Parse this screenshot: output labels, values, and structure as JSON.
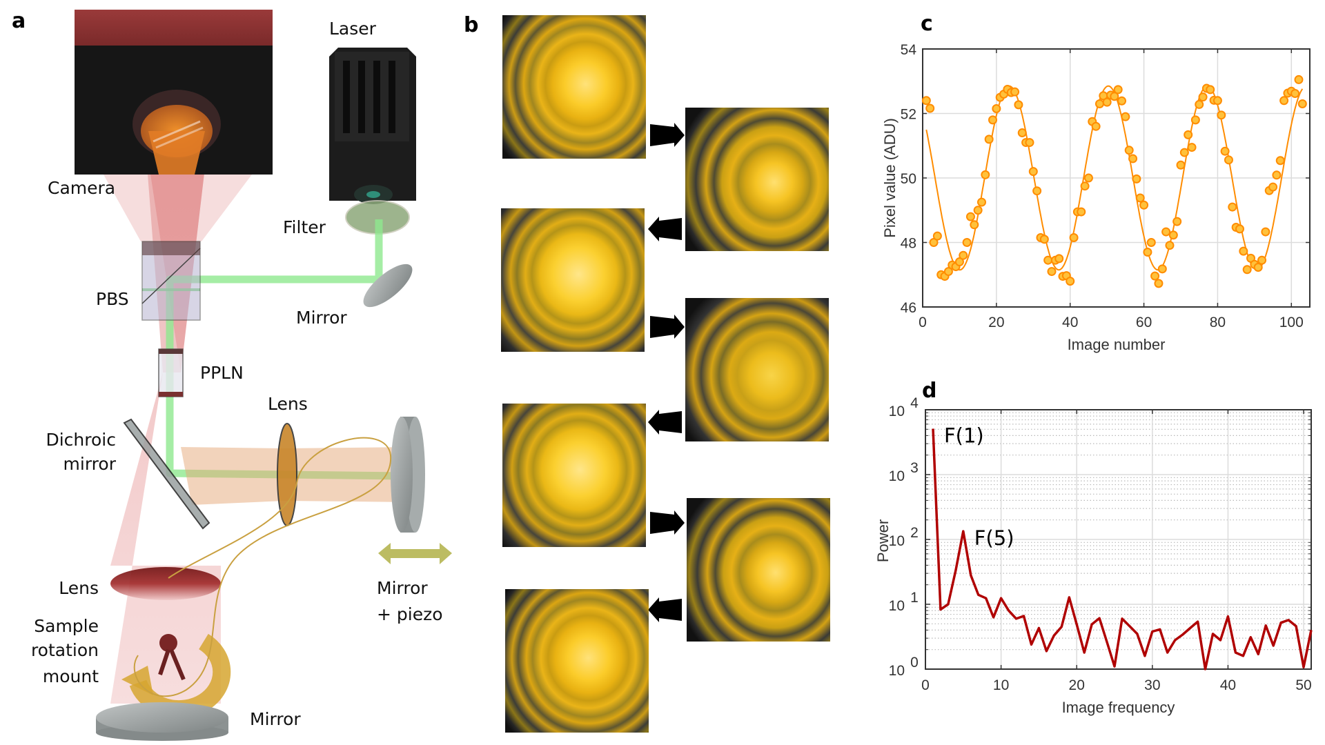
{
  "panel_labels": {
    "a": "a",
    "b": "b",
    "c": "c",
    "d": "d"
  },
  "setup": {
    "labels": {
      "laser": "Laser",
      "camera": "Camera",
      "filter": "Filter",
      "pbs": "PBS",
      "mirror_upper": "Mirror",
      "ppln": "PPLN",
      "lens_right": "Lens",
      "dichroic_line1": "Dichroic",
      "dichroic_line2": "mirror",
      "mirror_piezo_line1": "Mirror",
      "mirror_piezo_line2": "+ piezo",
      "lens_bottom": "Lens",
      "sample_line1": "Sample",
      "sample_line2": "rotation",
      "sample_line3": "mount",
      "mirror_bottom": "Mirror"
    },
    "colors": {
      "pump_beam": "#8fe88f",
      "signal_beam": "#e8a0a0",
      "camera_top": "#8e3535",
      "piezo_arrow": "#bcbc62"
    }
  },
  "panel_b": {
    "arrow_directions": [
      "right",
      "left",
      "right",
      "left",
      "right",
      "left"
    ]
  },
  "chart_data": [
    {
      "type": "scatter",
      "xlabel": "Image number",
      "ylabel": "Pixel value (ADU)",
      "xlim": [
        0,
        105
      ],
      "ylim": [
        46,
        54
      ],
      "xticks": [
        0,
        20,
        40,
        60,
        80,
        100
      ],
      "yticks": [
        46,
        48,
        50,
        52,
        54
      ],
      "grid": true,
      "color": "#ff8c00",
      "marker_fill": "#ffc13b",
      "series": [
        {
          "type": "scatter",
          "x": [
            1,
            2,
            3,
            4,
            5,
            6,
            7,
            8,
            9,
            10,
            11,
            12,
            13,
            14,
            15,
            16,
            17,
            18,
            19,
            20,
            21,
            22,
            23,
            24,
            25,
            26,
            27,
            28,
            29,
            30,
            31,
            32,
            33,
            34,
            35,
            36,
            37,
            38,
            39,
            40,
            41,
            42,
            43,
            44,
            45,
            46,
            47,
            48,
            49,
            50,
            51,
            52,
            53,
            54,
            55,
            56,
            57,
            58,
            59,
            60,
            61,
            62,
            63,
            64,
            65,
            66,
            67,
            68,
            69,
            70,
            71,
            72,
            73,
            74,
            75,
            76,
            77,
            78,
            79,
            80,
            81,
            82,
            83,
            84,
            85,
            86,
            87,
            88,
            89,
            90,
            91,
            92,
            93,
            94,
            95,
            96,
            97,
            98,
            99,
            100,
            101,
            102,
            103
          ],
          "y": [
            52.4,
            52.16,
            48.0,
            48.2,
            47.0,
            46.95,
            47.1,
            47.3,
            47.25,
            47.4,
            47.6,
            48.0,
            48.8,
            48.55,
            49.0,
            49.25,
            50.1,
            51.2,
            51.8,
            52.15,
            52.5,
            52.6,
            52.75,
            52.65,
            52.67,
            52.27,
            51.4,
            51.1,
            51.1,
            50.2,
            49.6,
            48.15,
            48.1,
            47.45,
            47.1,
            47.45,
            47.5,
            46.95,
            46.97,
            46.8,
            48.15,
            48.95,
            48.95,
            49.75,
            50.0,
            51.75,
            51.6,
            52.3,
            52.55,
            52.35,
            52.57,
            52.53,
            52.74,
            52.39,
            51.9,
            50.86,
            50.6,
            49.97,
            49.38,
            49.16,
            47.7,
            48.0,
            46.96,
            46.73,
            47.18,
            48.33,
            47.91,
            48.23,
            48.65,
            50.4,
            50.79,
            51.34,
            50.95,
            51.8,
            52.28,
            52.51,
            52.78,
            52.74,
            52.41,
            52.4,
            51.95,
            50.83,
            50.56,
            49.1,
            48.47,
            48.42,
            47.73,
            47.16,
            47.51,
            47.32,
            47.23,
            47.45,
            48.33,
            49.61,
            49.72,
            50.09,
            50.54,
            52.4,
            52.63,
            52.69,
            52.62,
            53.05,
            52.3
          ]
        },
        {
          "type": "line",
          "fit": {
            "offset": 50.0,
            "amplitude": 2.85,
            "period": 26.85,
            "peak_at": 23.5,
            "x_range": [
              1,
              103
            ]
          }
        }
      ]
    },
    {
      "type": "line",
      "xlabel": "Image frequency",
      "ylabel": "Power",
      "xlim": [
        0,
        51
      ],
      "ylim": [
        1,
        10000
      ],
      "yscale": "log",
      "xticks": [
        0,
        10,
        20,
        30,
        40,
        50
      ],
      "yticks": [
        1,
        10,
        100,
        1000,
        10000
      ],
      "grid": true,
      "minor_grid": true,
      "color": "#b00000",
      "series": [
        {
          "x": [
            1,
            2,
            3,
            4,
            5,
            6,
            7,
            8,
            9,
            10,
            11,
            12,
            13,
            14,
            15,
            16,
            17,
            18,
            19,
            20,
            21,
            22,
            23,
            24,
            25,
            26,
            27,
            28,
            29,
            30,
            31,
            32,
            33,
            34,
            35,
            36,
            37,
            38,
            39,
            40,
            41,
            42,
            43,
            44,
            45,
            46,
            47,
            48,
            49,
            50,
            51
          ],
          "y": [
            5100,
            8.3,
            10,
            33,
            134,
            28,
            14,
            12.4,
            6.3,
            12.4,
            8,
            6,
            6.6,
            2.4,
            4.3,
            1.9,
            3.3,
            4.5,
            12.8,
            4.9,
            1.8,
            4.9,
            6.1,
            2.6,
            1.1,
            6,
            4.6,
            3.5,
            1.6,
            3.8,
            4.1,
            1.8,
            2.8,
            3.4,
            4.3,
            5.4,
            1.0,
            3.5,
            2.8,
            6.5,
            1.8,
            1.6,
            3.1,
            1.7,
            4.7,
            2.3,
            5.2,
            5.7,
            4.6,
            1.07,
            4.0
          ]
        }
      ],
      "annotations": [
        {
          "text": "F(1)",
          "x": 1,
          "y": 5100
        },
        {
          "text": "F(5)",
          "x": 5,
          "y": 134
        }
      ]
    }
  ]
}
